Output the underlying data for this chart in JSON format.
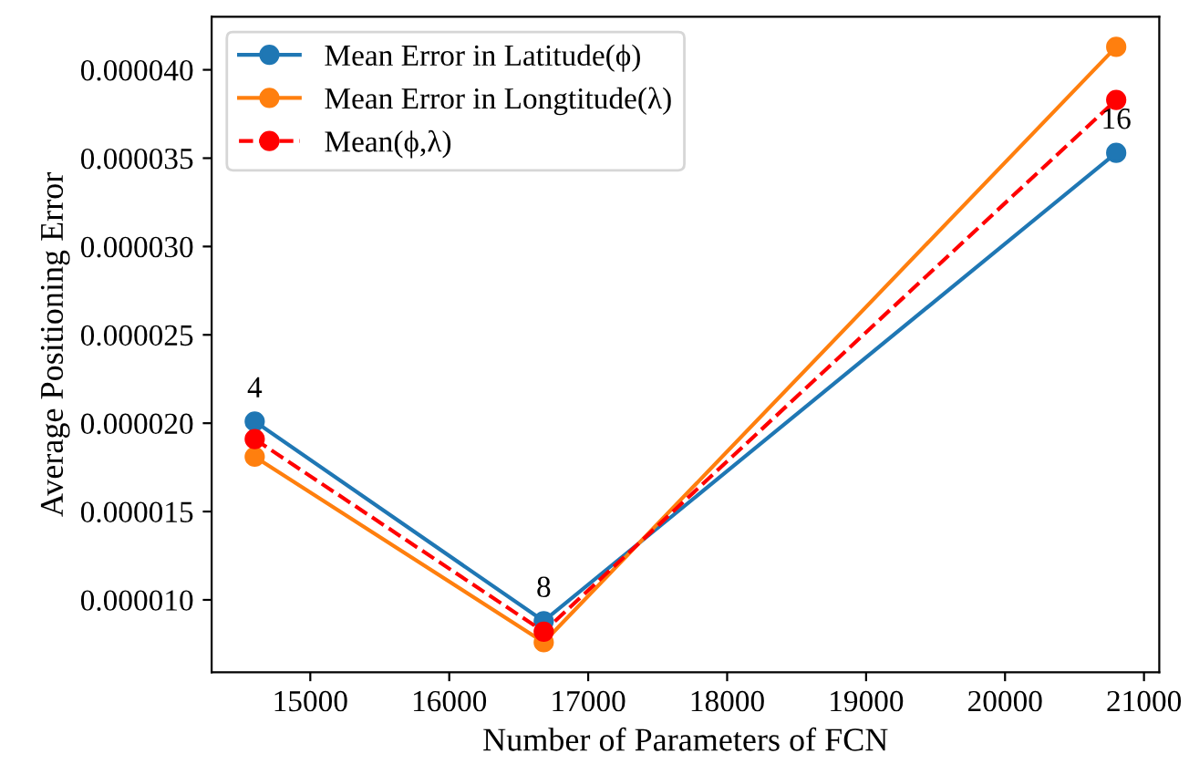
{
  "chart_data": {
    "type": "line",
    "xlabel": "Number of Parameters of FCN",
    "ylabel": "Average Positioning Error",
    "x": [
      14600,
      16680,
      20800
    ],
    "series": [
      {
        "name": "Mean Error in Latitude(ϕ)",
        "color": "#1f77b4",
        "values": [
          2.01e-05,
          8.8e-06,
          3.53e-05
        ],
        "line_style": "solid"
      },
      {
        "name": "Mean Error in Longtitude(λ)",
        "color": "#ff7f0e",
        "values": [
          1.81e-05,
          7.6e-06,
          4.13e-05
        ],
        "line_style": "solid"
      },
      {
        "name": "Mean(ϕ,λ)",
        "color": "#ff0000",
        "values": [
          1.91e-05,
          8.2e-06,
          3.83e-05
        ],
        "line_style": "dashed"
      }
    ],
    "annotations": [
      {
        "text": "4",
        "x": 14600,
        "y": 2.01e-05
      },
      {
        "text": "8",
        "x": 16680,
        "y": 8.8e-06
      },
      {
        "text": "16",
        "x": 20800,
        "y": 3.53e-05
      }
    ],
    "marker": "circle",
    "legend": "top left",
    "grid": false,
    "xlim": [
      14290,
      21110
    ],
    "xticks": [
      15000,
      16000,
      17000,
      18000,
      19000,
      20000,
      21000
    ],
    "ylim": [
      5.9e-06,
      4.3e-05
    ],
    "yticks": [
      {
        "value": 1e-05,
        "label": "0.000010"
      },
      {
        "value": 1.5e-05,
        "label": "0.000015"
      },
      {
        "value": 2e-05,
        "label": "0.000020"
      },
      {
        "value": 2.5e-05,
        "label": "0.000025"
      },
      {
        "value": 3e-05,
        "label": "0.000030"
      },
      {
        "value": 3.5e-05,
        "label": "0.000035"
      },
      {
        "value": 4e-05,
        "label": "0.000040"
      }
    ]
  }
}
